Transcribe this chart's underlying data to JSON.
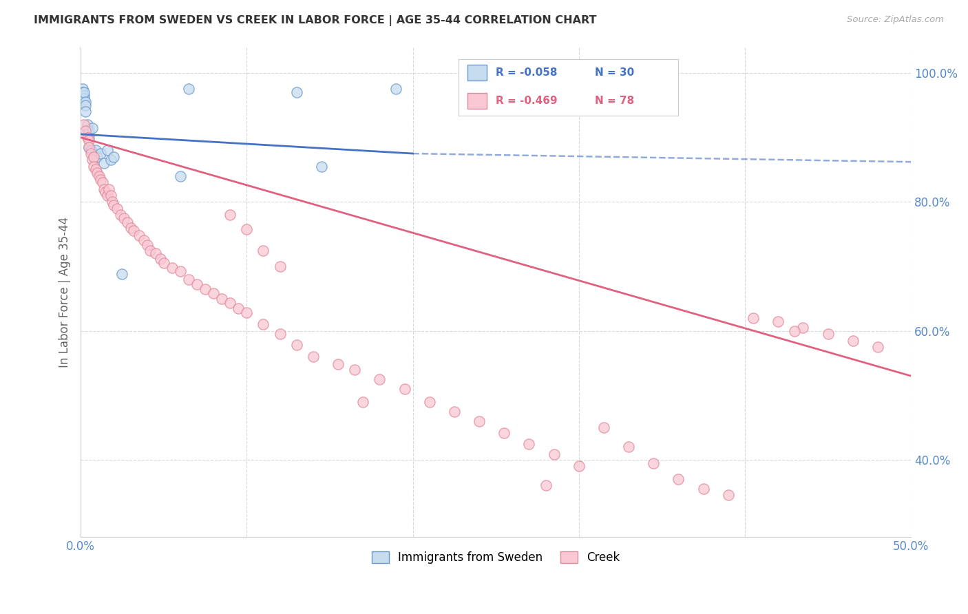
{
  "title": "IMMIGRANTS FROM SWEDEN VS CREEK IN LABOR FORCE | AGE 35-44 CORRELATION CHART",
  "source": "Source: ZipAtlas.com",
  "ylabel": "In Labor Force | Age 35-44",
  "legend_label1": "Immigrants from Sweden",
  "legend_label2": "Creek",
  "legend_r1": "R = -0.058",
  "legend_n1": "N = 30",
  "legend_r2": "R = -0.469",
  "legend_n2": "N = 78",
  "xlim": [
    0.0,
    0.5
  ],
  "ylim": [
    0.28,
    1.04
  ],
  "yticks": [
    0.4,
    0.6,
    0.8,
    1.0
  ],
  "ytick_labels": [
    "40.0%",
    "60.0%",
    "80.0%",
    "100.0%"
  ],
  "xticks": [
    0.0,
    0.1,
    0.2,
    0.3,
    0.4,
    0.5
  ],
  "xtick_labels": [
    "0.0%",
    "",
    "",
    "",
    "",
    "50.0%"
  ],
  "color_sweden_face": "#c8dcf0",
  "color_sweden_edge": "#6699cc",
  "color_sweden_line": "#4472c4",
  "color_creek_face": "#fac8d4",
  "color_creek_edge": "#e08898",
  "color_creek_line": "#e06080",
  "sweden_x": [
    0.001,
    0.001,
    0.002,
    0.002,
    0.002,
    0.003,
    0.003,
    0.003,
    0.004,
    0.004,
    0.005,
    0.005,
    0.005,
    0.006,
    0.006,
    0.007,
    0.008,
    0.009,
    0.01,
    0.012,
    0.014,
    0.016,
    0.018,
    0.02,
    0.025,
    0.06,
    0.065,
    0.13,
    0.145,
    0.19
  ],
  "sweden_y": [
    0.975,
    0.97,
    0.965,
    0.96,
    0.97,
    0.955,
    0.95,
    0.94,
    0.92,
    0.91,
    0.91,
    0.9,
    0.885,
    0.88,
    0.88,
    0.915,
    0.87,
    0.88,
    0.87,
    0.875,
    0.86,
    0.88,
    0.865,
    0.87,
    0.688,
    0.84,
    0.975,
    0.97,
    0.855,
    0.975
  ],
  "creek_x": [
    0.002,
    0.003,
    0.004,
    0.005,
    0.005,
    0.006,
    0.007,
    0.008,
    0.008,
    0.009,
    0.01,
    0.011,
    0.012,
    0.013,
    0.014,
    0.015,
    0.016,
    0.017,
    0.018,
    0.019,
    0.02,
    0.022,
    0.024,
    0.026,
    0.028,
    0.03,
    0.032,
    0.035,
    0.038,
    0.04,
    0.042,
    0.045,
    0.048,
    0.05,
    0.055,
    0.06,
    0.065,
    0.07,
    0.075,
    0.08,
    0.085,
    0.09,
    0.095,
    0.1,
    0.11,
    0.12,
    0.13,
    0.14,
    0.155,
    0.165,
    0.18,
    0.195,
    0.21,
    0.225,
    0.24,
    0.255,
    0.27,
    0.285,
    0.3,
    0.315,
    0.33,
    0.345,
    0.36,
    0.375,
    0.39,
    0.405,
    0.42,
    0.435,
    0.45,
    0.465,
    0.48,
    0.09,
    0.1,
    0.11,
    0.12,
    0.17,
    0.28,
    0.43
  ],
  "creek_y": [
    0.92,
    0.91,
    0.9,
    0.895,
    0.885,
    0.875,
    0.865,
    0.87,
    0.855,
    0.85,
    0.845,
    0.84,
    0.835,
    0.83,
    0.82,
    0.815,
    0.81,
    0.82,
    0.81,
    0.8,
    0.795,
    0.79,
    0.78,
    0.775,
    0.768,
    0.76,
    0.755,
    0.748,
    0.74,
    0.733,
    0.725,
    0.72,
    0.712,
    0.705,
    0.698,
    0.692,
    0.68,
    0.672,
    0.665,
    0.658,
    0.65,
    0.643,
    0.635,
    0.628,
    0.61,
    0.595,
    0.578,
    0.56,
    0.548,
    0.54,
    0.525,
    0.51,
    0.49,
    0.475,
    0.46,
    0.442,
    0.425,
    0.408,
    0.39,
    0.45,
    0.42,
    0.395,
    0.37,
    0.355,
    0.345,
    0.62,
    0.615,
    0.605,
    0.595,
    0.585,
    0.575,
    0.78,
    0.758,
    0.725,
    0.7,
    0.49,
    0.36,
    0.6
  ]
}
